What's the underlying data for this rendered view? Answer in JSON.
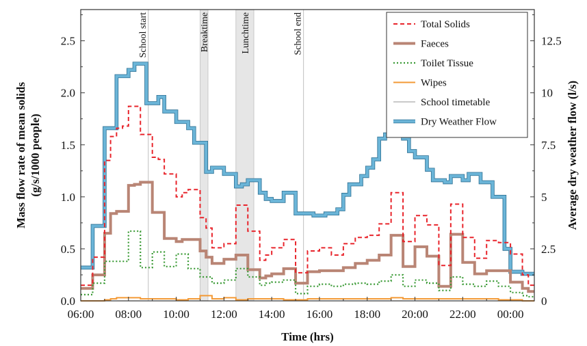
{
  "chart_data": {
    "type": "line",
    "step": true,
    "xlabel": "Time (hrs)",
    "ylabel_left": [
      "Mass flow rate of mean solids",
      "(g/s/1000 people)"
    ],
    "ylabel_right": "Average dry weather flow (l/s)",
    "xlim": [
      6.0,
      25.0
    ],
    "ylim_left": [
      0,
      2.8
    ],
    "ylim_right": [
      0,
      14
    ],
    "x_ticks": [
      {
        "value": 6,
        "label": "06:00"
      },
      {
        "value": 8,
        "label": "08:00"
      },
      {
        "value": 10,
        "label": "10:00"
      },
      {
        "value": 12,
        "label": "12:00"
      },
      {
        "value": 14,
        "label": "14:00"
      },
      {
        "value": 16,
        "label": "16:00"
      },
      {
        "value": 18,
        "label": "18:00"
      },
      {
        "value": 20,
        "label": "20:00"
      },
      {
        "value": 22,
        "label": "22:00"
      },
      {
        "value": 24,
        "label": "00:00"
      }
    ],
    "y_ticks_left": [
      {
        "value": 0,
        "label": "0.0"
      },
      {
        "value": 0.5,
        "label": "0.5"
      },
      {
        "value": 1.0,
        "label": "1.0"
      },
      {
        "value": 1.5,
        "label": "1.5"
      },
      {
        "value": 2.0,
        "label": "2.0"
      },
      {
        "value": 2.5,
        "label": "2.5"
      }
    ],
    "y_ticks_right": [
      {
        "value": 0,
        "label": "0"
      },
      {
        "value": 2.5,
        "label": "2.5"
      },
      {
        "value": 5,
        "label": "5"
      },
      {
        "value": 7.5,
        "label": "7.5"
      },
      {
        "value": 10,
        "label": "10"
      },
      {
        "value": 12.5,
        "label": "12.5"
      }
    ],
    "timetable": {
      "lines": [
        {
          "x": 8.83,
          "label": "School  start"
        },
        {
          "x": 15.33,
          "label": "School end"
        }
      ],
      "bands": [
        {
          "x0": 11.0,
          "x1": 11.33,
          "label": "Breaktime"
        },
        {
          "x0": 12.5,
          "x1": 13.25,
          "label": "Lunchtime"
        }
      ]
    },
    "x": [
      6.0,
      6.5,
      7.0,
      7.25,
      7.5,
      7.75,
      8.0,
      8.25,
      8.5,
      8.75,
      9.0,
      9.25,
      9.5,
      9.75,
      10.0,
      10.25,
      10.5,
      10.75,
      11.0,
      11.25,
      11.5,
      11.75,
      12.0,
      12.25,
      12.5,
      12.75,
      13.0,
      13.25,
      13.5,
      13.75,
      14.0,
      14.25,
      14.5,
      14.75,
      15.0,
      15.25,
      15.5,
      15.75,
      16.0,
      16.25,
      16.5,
      16.75,
      17.0,
      17.25,
      17.5,
      17.75,
      18.0,
      18.25,
      18.5,
      18.75,
      19.0,
      19.25,
      19.5,
      19.75,
      20.0,
      20.25,
      20.5,
      20.75,
      21.0,
      21.25,
      21.5,
      21.75,
      22.0,
      22.25,
      22.5,
      22.75,
      23.0,
      23.25,
      23.5,
      23.75,
      24.0,
      24.25,
      24.5,
      24.75,
      25.0
    ],
    "series": [
      {
        "name": "Total Solids",
        "axis": "left",
        "color": "#e8242b",
        "dash": "6,4",
        "width": 2,
        "values": [
          0.15,
          0.42,
          1.35,
          1.58,
          1.66,
          1.68,
          1.87,
          1.87,
          1.6,
          1.6,
          1.38,
          1.36,
          1.22,
          1.22,
          1.0,
          1.04,
          1.07,
          1.07,
          0.8,
          0.7,
          0.51,
          0.51,
          0.55,
          0.55,
          0.92,
          0.92,
          0.67,
          0.67,
          0.39,
          0.44,
          0.51,
          0.51,
          0.59,
          0.59,
          0.27,
          0.27,
          0.48,
          0.48,
          0.51,
          0.51,
          0.44,
          0.44,
          0.55,
          0.55,
          0.61,
          0.61,
          0.63,
          0.63,
          0.74,
          0.74,
          1.04,
          1.04,
          0.57,
          0.57,
          0.82,
          0.82,
          0.73,
          0.73,
          0.34,
          0.34,
          0.93,
          0.93,
          0.61,
          0.61,
          0.41,
          0.41,
          0.58,
          0.58,
          0.56,
          0.56,
          0.45,
          0.45,
          0.25,
          0.15,
          0.15
        ]
      },
      {
        "name": "Faeces",
        "axis": "left",
        "color": "#b98575",
        "dash": "",
        "width": 4,
        "values": [
          0.12,
          0.25,
          0.65,
          0.84,
          0.86,
          0.86,
          1.11,
          1.12,
          1.14,
          1.14,
          0.85,
          0.85,
          0.6,
          0.6,
          0.57,
          0.59,
          0.59,
          0.59,
          0.48,
          0.42,
          0.36,
          0.36,
          0.4,
          0.4,
          0.44,
          0.44,
          0.3,
          0.3,
          0.22,
          0.24,
          0.26,
          0.26,
          0.31,
          0.31,
          0.17,
          0.17,
          0.28,
          0.28,
          0.29,
          0.29,
          0.29,
          0.29,
          0.32,
          0.32,
          0.36,
          0.36,
          0.39,
          0.39,
          0.44,
          0.44,
          0.63,
          0.63,
          0.33,
          0.33,
          0.52,
          0.52,
          0.43,
          0.43,
          0.14,
          0.14,
          0.64,
          0.64,
          0.37,
          0.37,
          0.26,
          0.26,
          0.29,
          0.29,
          0.29,
          0.29,
          0.18,
          0.18,
          0.12,
          0.09,
          0.09
        ]
      },
      {
        "name": "Toilet Tissue",
        "axis": "left",
        "color": "#3a9a35",
        "dash": "2,3",
        "width": 2.2,
        "values": [
          0.06,
          0.17,
          0.38,
          0.38,
          0.38,
          0.38,
          0.67,
          0.67,
          0.32,
          0.32,
          0.47,
          0.47,
          0.33,
          0.33,
          0.45,
          0.45,
          0.31,
          0.31,
          0.23,
          0.23,
          0.17,
          0.17,
          0.2,
          0.2,
          0.31,
          0.31,
          0.23,
          0.23,
          0.15,
          0.17,
          0.18,
          0.18,
          0.2,
          0.2,
          0.07,
          0.07,
          0.14,
          0.14,
          0.16,
          0.16,
          0.14,
          0.14,
          0.16,
          0.16,
          0.17,
          0.17,
          0.16,
          0.16,
          0.19,
          0.19,
          0.25,
          0.25,
          0.14,
          0.14,
          0.2,
          0.2,
          0.17,
          0.17,
          0.1,
          0.1,
          0.23,
          0.23,
          0.16,
          0.16,
          0.14,
          0.14,
          0.19,
          0.19,
          0.14,
          0.14,
          0.08,
          0.08,
          0.05,
          0.04,
          0.04
        ]
      },
      {
        "name": "Wipes",
        "axis": "left",
        "color": "#f39a36",
        "dash": "",
        "width": 2,
        "values": [
          0.0,
          0.0,
          0.01,
          0.02,
          0.03,
          0.03,
          0.03,
          0.03,
          0.02,
          0.02,
          0.02,
          0.02,
          0.02,
          0.02,
          0.01,
          0.01,
          0.02,
          0.02,
          0.05,
          0.05,
          0.02,
          0.02,
          0.03,
          0.03,
          0.01,
          0.01,
          0.02,
          0.02,
          0.02,
          0.02,
          0.02,
          0.02,
          0.01,
          0.01,
          0.01,
          0.01,
          0.02,
          0.02,
          0.02,
          0.02,
          0.02,
          0.02,
          0.02,
          0.02,
          0.02,
          0.02,
          0.02,
          0.02,
          0.02,
          0.02,
          0.03,
          0.03,
          0.02,
          0.02,
          0.02,
          0.02,
          0.02,
          0.02,
          0.02,
          0.02,
          0.02,
          0.02,
          0.02,
          0.02,
          0.02,
          0.02,
          0.02,
          0.02,
          0.01,
          0.01,
          0.01,
          0.01,
          0.0,
          0.0,
          0.0
        ]
      },
      {
        "name": "Dry Weather Flow",
        "axis": "right",
        "color": "#6bb5d8",
        "dash": "",
        "width": 4,
        "outline": "#2c6f92",
        "values": [
          1.6,
          3.6,
          8.3,
          8.3,
          10.8,
          10.8,
          11.1,
          11.4,
          11.4,
          9.5,
          9.5,
          9.8,
          9.1,
          9.1,
          8.6,
          8.6,
          8.3,
          7.6,
          7.6,
          6.2,
          6.4,
          6.4,
          6.1,
          6.1,
          5.5,
          5.6,
          5.8,
          5.8,
          5.2,
          4.9,
          4.8,
          4.8,
          5.2,
          5.2,
          4.2,
          4.2,
          4.2,
          4.1,
          4.1,
          4.2,
          4.2,
          4.4,
          5.1,
          5.6,
          5.6,
          6.0,
          6.4,
          6.8,
          7.8,
          8.0,
          8.2,
          8.2,
          7.8,
          7.2,
          6.9,
          6.9,
          6.3,
          5.8,
          5.8,
          5.7,
          6.0,
          6.0,
          5.8,
          6.1,
          6.1,
          5.7,
          5.7,
          5.0,
          5.0,
          2.5,
          1.4,
          1.4,
          1.3,
          1.3,
          1.3
        ]
      }
    ],
    "legend": {
      "position": "top-right",
      "entries": [
        {
          "label": "Total Solids",
          "color": "#e8242b",
          "dash": "6,4",
          "width": 2
        },
        {
          "label": "Faeces",
          "color": "#b98575",
          "dash": "",
          "width": 4
        },
        {
          "label": "Toilet Tissue",
          "color": "#3a9a35",
          "dash": "2,3",
          "width": 2.2
        },
        {
          "label": "Wipes",
          "color": "#f39a36",
          "dash": "",
          "width": 2
        },
        {
          "label": "School timetable",
          "color": "#c9c9c9",
          "dash": "",
          "width": 2
        },
        {
          "label": "Dry Weather Flow",
          "color": "#6bb5d8",
          "dash": "",
          "width": 4,
          "outline": "#2c6f92"
        }
      ]
    },
    "grid": false
  }
}
